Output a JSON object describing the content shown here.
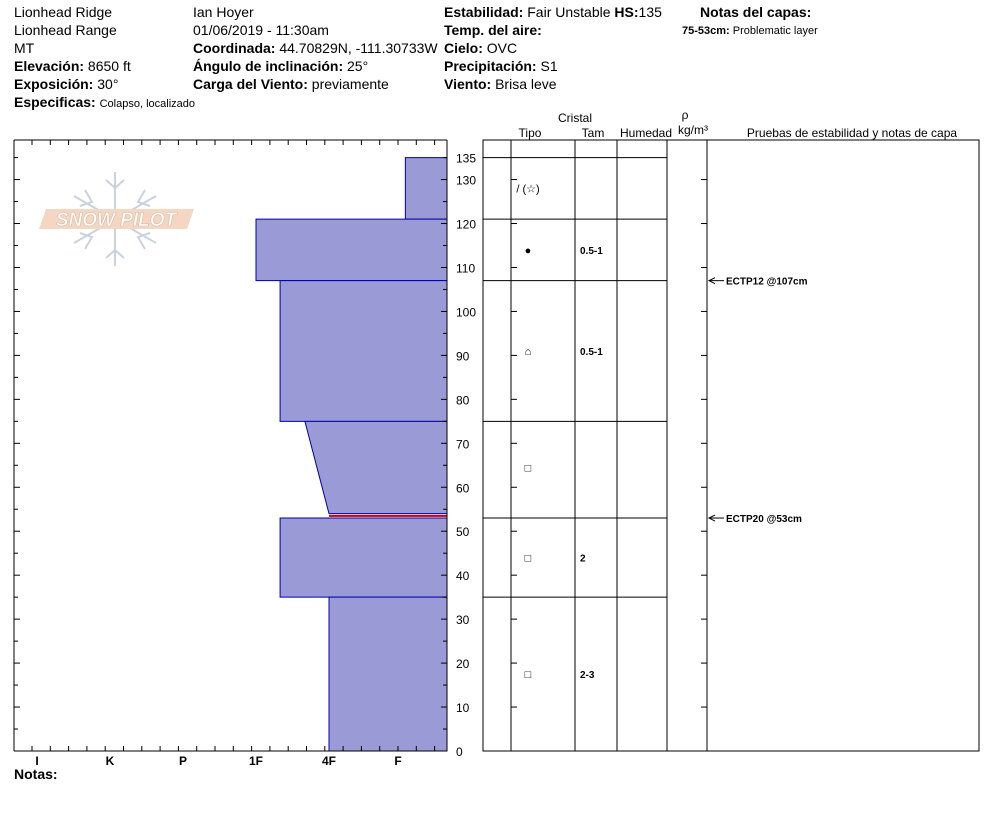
{
  "header": {
    "location": "Lionhead Ridge",
    "range": "Lionhead Range",
    "state": "MT",
    "observer": "Ian Hoyer",
    "datetime": "01/06/2019 - 11:30am",
    "elevation_label": "Elevación:",
    "elevation_value": "8650 ft",
    "exposure_label": "Exposición:",
    "exposure_value": "30°",
    "specifics_label": "Especificas:",
    "specifics_value": "Colapso, localizado",
    "coord_label": "Coordinada:",
    "coord_value": "44.70829N, -111.30733W",
    "incline_label": "Ángulo de inclinación:",
    "incline_value": "25°",
    "wind_load_label": "Carga del Viento:",
    "wind_load_value": "previamente",
    "stability_label": "Estabilidad:",
    "stability_value": "Fair Unstable",
    "hs_label": "HS:",
    "hs_value": "135",
    "air_temp_label": "Temp. del aire:",
    "air_temp_value": "",
    "sky_label": "Cielo:",
    "sky_value": "OVC",
    "precip_label": "Precipitación:",
    "precip_value": "S1",
    "wind_label": "Viento:",
    "wind_value": "Brisa leve",
    "layer_notes_label": "Notas del capas:",
    "layer_note_range": "75-53cm:",
    "layer_note_text": "Problematic layer"
  },
  "logo_text": "SNOW PILOT",
  "notes_label": "Notas:",
  "columns": {
    "cristal": "Cristal",
    "tipo": "Tipo",
    "tam": "Tam",
    "humedad": "Humedad",
    "rho": "ρ",
    "density_unit": "kg/m³",
    "tests": "Pruebas de estabilidad y notas de capa"
  },
  "colors": {
    "layer_fill": "#9a9ad6",
    "layer_stroke": "#0000aa",
    "weak_layer": "#cc0000",
    "grid": "#000000"
  },
  "chart_data": {
    "type": "snow_profile",
    "ylim": [
      0,
      139
    ],
    "y_ticks": [
      0,
      10,
      20,
      30,
      40,
      50,
      60,
      70,
      80,
      90,
      100,
      110,
      120,
      130,
      135
    ],
    "hardness_scale": [
      "I",
      "K",
      "P",
      "1F",
      "4F",
      "F"
    ],
    "layers": [
      {
        "top": 135,
        "bottom": 121,
        "hardness_top": 0.85,
        "hardness_bottom": 0.85,
        "crystal_icon": "/ (☆)",
        "size": ""
      },
      {
        "top": 121,
        "bottom": 107,
        "hardness_top": 2.0,
        "hardness_bottom": 2.0,
        "crystal_icon": "●",
        "size": "0.5-1"
      },
      {
        "top": 107,
        "bottom": 75,
        "hardness_top": 1.67,
        "hardness_bottom": 1.67,
        "crystal_icon": "⌂",
        "size": "0.5-1"
      },
      {
        "top": 75,
        "bottom": 54,
        "hardness_top": 1.33,
        "hardness_bottom": 1.0,
        "crystal_icon": "□",
        "size": ""
      },
      {
        "top": 53,
        "bottom": 35,
        "hardness_top": 1.67,
        "hardness_bottom": 1.67,
        "crystal_icon": "□",
        "size": "2"
      },
      {
        "top": 35,
        "bottom": 0,
        "hardness_top": 1.0,
        "hardness_bottom": 1.0,
        "crystal_icon": "□",
        "size": "2-3"
      }
    ],
    "weak_layer_depth": 53.5,
    "layer_boundaries": [
      135,
      121,
      107,
      75,
      53,
      35,
      0
    ],
    "stability_tests": [
      {
        "depth": 107,
        "label": "ECTP12 @107cm"
      },
      {
        "depth": 53,
        "label": "ECTP20 @53cm"
      }
    ]
  }
}
